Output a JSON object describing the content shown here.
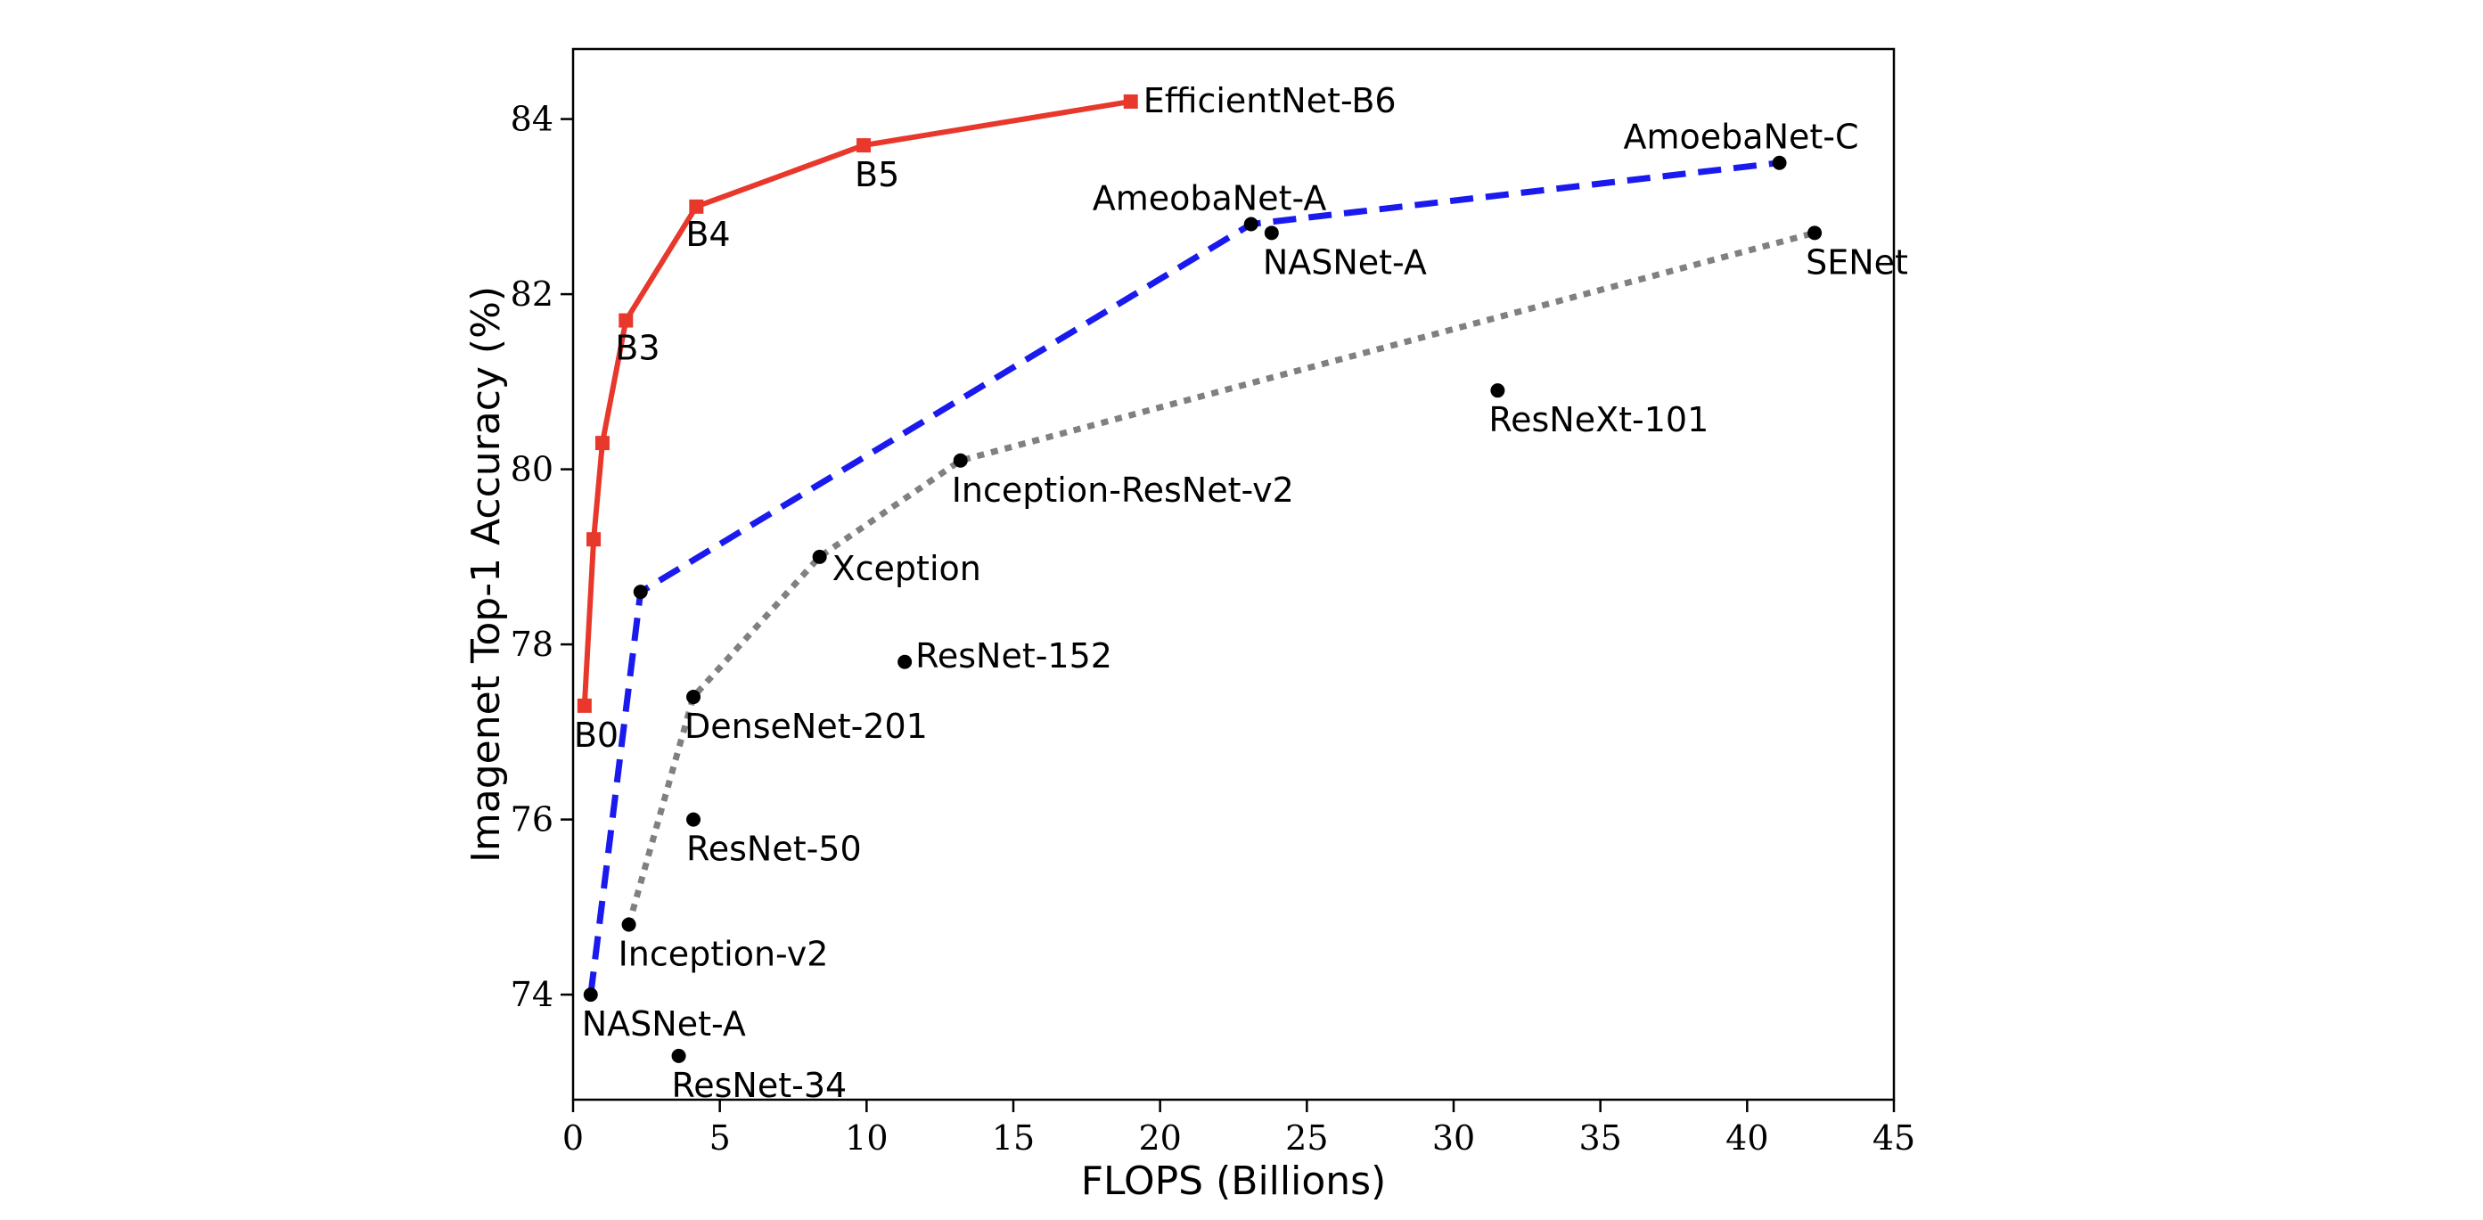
{
  "chart_data": {
    "type": "line",
    "xlabel": "FLOPS (Billions)",
    "ylabel": "Imagenet Top-1 Accuracy (%)",
    "xlim": [
      0,
      45
    ],
    "ylim": [
      72.8,
      84.8
    ],
    "xticks": [
      0,
      5,
      10,
      15,
      20,
      25,
      30,
      35,
      40,
      45
    ],
    "yticks": [
      74,
      76,
      78,
      80,
      82,
      84
    ],
    "grid": false,
    "legend": "none",
    "series": [
      {
        "style": "solid-red-square-markers",
        "color": "#e8372b",
        "points": [
          {
            "x": 0.39,
            "y": 77.3,
            "label": "B0"
          },
          {
            "x": 0.7,
            "y": 79.2,
            "label": ""
          },
          {
            "x": 1.0,
            "y": 80.3,
            "label": ""
          },
          {
            "x": 1.8,
            "y": 81.7,
            "label": "B3"
          },
          {
            "x": 4.2,
            "y": 83.0,
            "label": "B4"
          },
          {
            "x": 9.9,
            "y": 83.7,
            "label": "B5"
          },
          {
            "x": 19.0,
            "y": 84.2,
            "label": "EfficientNet-B6"
          }
        ]
      },
      {
        "style": "dashed-blue",
        "color": "#1a1aee",
        "points": [
          {
            "x": 0.6,
            "y": 74.0,
            "label": "NASNet-A"
          },
          {
            "x": 2.3,
            "y": 78.6,
            "label": ""
          },
          {
            "x": 23.1,
            "y": 82.8,
            "label": "AmeobaNet-A"
          },
          {
            "x": 41.1,
            "y": 83.5,
            "label": "AmoebaNet-C"
          }
        ]
      },
      {
        "style": "dotted-gray",
        "color": "#808080",
        "points": [
          {
            "x": 1.9,
            "y": 74.8,
            "label": "Inception-v2"
          },
          {
            "x": 4.1,
            "y": 77.4,
            "label": "DenseNet-201"
          },
          {
            "x": 8.4,
            "y": 79.0,
            "label": "Xception"
          },
          {
            "x": 13.2,
            "y": 80.1,
            "label": "Inception-ResNet-v2"
          },
          {
            "x": 42.3,
            "y": 82.7,
            "label": "SENet"
          }
        ]
      },
      {
        "style": "black-dots-only",
        "color": "#000000",
        "points": [
          {
            "x": 3.6,
            "y": 73.3,
            "label": "ResNet-34"
          },
          {
            "x": 4.1,
            "y": 76.0,
            "label": "ResNet-50"
          },
          {
            "x": 11.3,
            "y": 77.8,
            "label": "ResNet-152"
          },
          {
            "x": 23.8,
            "y": 82.7,
            "label": "NASNet-A"
          },
          {
            "x": 31.5,
            "y": 80.9,
            "label": "ResNeXt-101"
          }
        ]
      }
    ]
  }
}
